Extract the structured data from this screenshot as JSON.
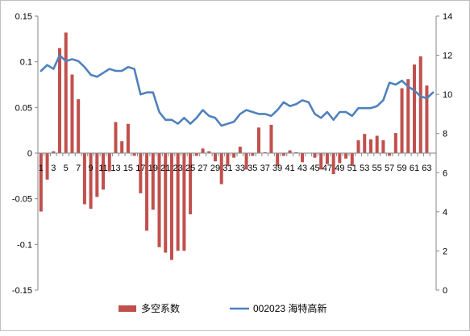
{
  "chart_data": {
    "type": "bar+line",
    "categories": [
      1,
      2,
      3,
      4,
      5,
      6,
      7,
      8,
      9,
      10,
      11,
      12,
      13,
      14,
      15,
      16,
      17,
      18,
      19,
      20,
      21,
      22,
      23,
      24,
      25,
      26,
      27,
      28,
      29,
      30,
      31,
      32,
      33,
      34,
      35,
      36,
      37,
      38,
      39,
      40,
      41,
      42,
      43,
      44,
      45,
      46,
      47,
      48,
      49,
      50,
      51,
      52,
      53,
      54,
      55,
      56,
      57,
      58,
      59,
      60,
      61,
      62,
      63,
      64
    ],
    "x_tick_labels": [
      "1",
      "3",
      "5",
      "7",
      "9",
      "11",
      "13",
      "15",
      "17",
      "19",
      "21",
      "23",
      "25",
      "27",
      "29",
      "31",
      "33",
      "35",
      "37",
      "39",
      "41",
      "43",
      "45",
      "47",
      "49",
      "51",
      "53",
      "55",
      "57",
      "59",
      "61",
      "63"
    ],
    "left_axis": {
      "ylim": [
        -0.15,
        0.15
      ],
      "ticks": [
        "-0.15",
        "-0.1",
        "-0.05",
        "0",
        "0.05",
        "0.1",
        "0.15"
      ],
      "tick_values": [
        -0.15,
        -0.1,
        -0.05,
        0,
        0.05,
        0.1,
        0.15
      ]
    },
    "right_axis": {
      "ylim": [
        0,
        14
      ],
      "ticks": [
        "0",
        "2",
        "4",
        "6",
        "8",
        "10",
        "12",
        "14"
      ],
      "tick_values": [
        0,
        2,
        4,
        6,
        8,
        10,
        12,
        14
      ]
    },
    "series": [
      {
        "name": "多空系数",
        "kind": "bar",
        "axis": "left",
        "color": "#c0504d",
        "values": [
          -0.064,
          -0.029,
          0.002,
          0.115,
          0.132,
          0.086,
          0.059,
          -0.056,
          -0.061,
          -0.048,
          -0.04,
          -0.02,
          0.034,
          0.013,
          0.032,
          -0.003,
          -0.044,
          -0.085,
          -0.062,
          -0.103,
          -0.109,
          -0.117,
          -0.107,
          -0.107,
          -0.067,
          -0.003,
          0.005,
          0.002,
          -0.009,
          -0.034,
          -0.014,
          -0.005,
          0.007,
          -0.018,
          -0.003,
          0.028,
          0.001,
          0.031,
          -0.014,
          -0.003,
          0.003,
          0.001,
          -0.01,
          0.0,
          -0.005,
          -0.018,
          -0.012,
          -0.023,
          -0.011,
          -0.006,
          -0.014,
          0.014,
          0.021,
          0.015,
          0.019,
          0.014,
          -0.003,
          0.022,
          0.071,
          0.081,
          0.097,
          0.106,
          0.074,
          0.0
        ]
      },
      {
        "name": "002023 海特高新",
        "kind": "line",
        "axis": "right",
        "color": "#4f81bd",
        "values": [
          11.2,
          11.5,
          11.3,
          12.0,
          11.7,
          11.8,
          11.7,
          11.4,
          11.0,
          10.9,
          11.1,
          11.3,
          11.2,
          11.2,
          11.4,
          11.3,
          10.0,
          10.1,
          10.1,
          9.1,
          8.7,
          8.7,
          8.5,
          8.8,
          8.5,
          8.8,
          9.2,
          8.9,
          8.8,
          8.4,
          8.5,
          8.6,
          9.0,
          9.2,
          9.1,
          9.0,
          9.0,
          8.9,
          9.2,
          9.6,
          9.4,
          9.5,
          9.7,
          9.6,
          9.0,
          8.8,
          9.1,
          8.7,
          9.1,
          9.1,
          8.9,
          9.3,
          9.3,
          9.3,
          9.4,
          9.7,
          10.6,
          10.5,
          10.7,
          10.4,
          10.2,
          9.9,
          9.8,
          10.1
        ]
      }
    ],
    "legend_position": "bottom",
    "grid": false
  }
}
